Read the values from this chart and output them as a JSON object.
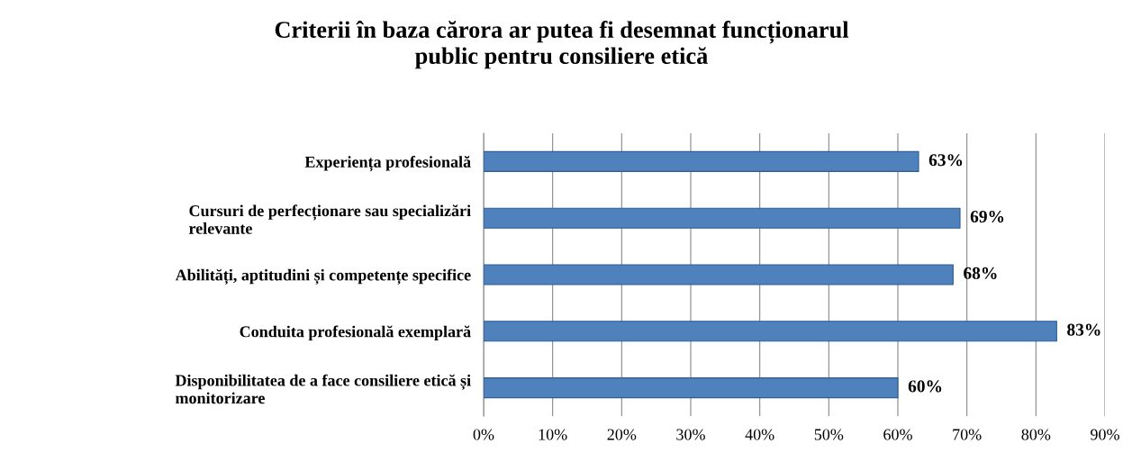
{
  "chart_data": {
    "type": "bar",
    "orientation": "horizontal",
    "title": "Criterii în baza cărora ar putea fi desemnat funcționarul\npublic pentru consiliere etică",
    "categories": [
      "Experiența profesională",
      "Cursuri de perfecționare sau specializări\nrelevante",
      "Abilități, aptitudini și competențe specifice",
      "Conduita profesională exemplară",
      "Disponibilitatea de a face consiliere etică și\nmonitorizare"
    ],
    "values": [
      63,
      69,
      68,
      83,
      60
    ],
    "value_labels": [
      "63%",
      "69%",
      "68%",
      "83%",
      "60%"
    ],
    "color": "#4f81bd",
    "xlim": [
      0,
      90
    ],
    "xticks": [
      {
        "value": 0,
        "label": "0%"
      },
      {
        "value": 10,
        "label": "10%"
      },
      {
        "value": 20,
        "label": "20%"
      },
      {
        "value": 30,
        "label": "30%"
      },
      {
        "value": 40,
        "label": "40%"
      },
      {
        "value": 50,
        "label": "50%"
      },
      {
        "value": 60,
        "label": "60%"
      },
      {
        "value": 70,
        "label": "70%"
      },
      {
        "value": 80,
        "label": "80%"
      },
      {
        "value": 90,
        "label": "90%"
      }
    ],
    "grid": "x",
    "legend": false
  }
}
